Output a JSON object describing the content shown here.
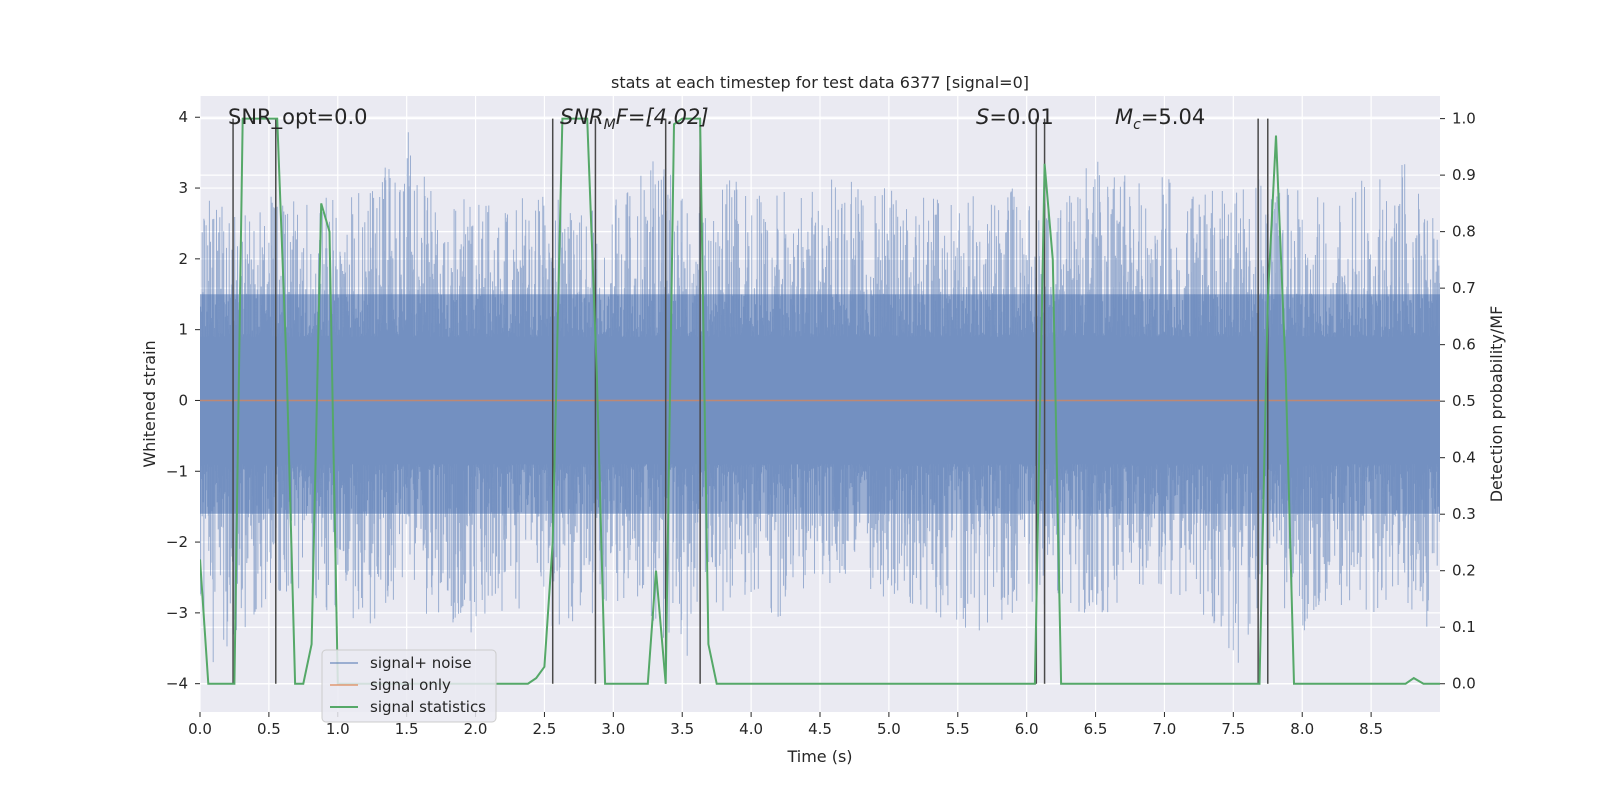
{
  "chart_data": {
    "type": "line",
    "title": "stats at each timestep for test data 6377 [signal=0]",
    "xlabel": "Time (s)",
    "ylabel": "Whitened strain",
    "ylabel_right": "Detection probability/MF",
    "xlim": [
      0.0,
      9.0
    ],
    "ylim": [
      -4.4,
      4.3
    ],
    "ylim_right": [
      -0.05,
      1.04
    ],
    "x_ticks": [
      "0.0",
      "0.5",
      "1.0",
      "1.5",
      "2.0",
      "2.5",
      "3.0",
      "3.5",
      "4.0",
      "4.5",
      "5.0",
      "5.5",
      "6.0",
      "6.5",
      "7.0",
      "7.5",
      "8.0",
      "8.5"
    ],
    "y_ticks": [
      "−4",
      "−3",
      "−2",
      "−1",
      "0",
      "1",
      "2",
      "3",
      "4"
    ],
    "y_ticks_right": [
      "0.0",
      "0.1",
      "0.2",
      "0.3",
      "0.4",
      "0.5",
      "0.6",
      "0.7",
      "0.8",
      "0.9",
      "1.0"
    ],
    "grid": true,
    "legend": {
      "position": "lower-left",
      "entries": [
        {
          "label": "signal+ noise",
          "color": "#4c72b0"
        },
        {
          "label": "signal only",
          "color": "#dd8452"
        },
        {
          "label": "signal statistics",
          "color": "#55a868"
        }
      ]
    },
    "annotations": {
      "snr_opt": "SNR_opt=0.0",
      "snr_mf_main": "SNR",
      "snr_mf_sub": "M",
      "snr_mf_rest": "F=[4.02]",
      "s_main": "S",
      "s_rest": "=0.01",
      "mc_main": "M",
      "mc_sub": "c",
      "mc_rest": "=5.04"
    },
    "series": [
      {
        "name": "signal+ noise",
        "color": "#4c72b0",
        "description_free": true,
        "envelope": {
          "x": [
            0.0,
            0.25,
            0.5,
            0.75,
            1.0,
            1.25,
            1.5,
            1.75,
            2.0,
            2.25,
            2.5,
            2.75,
            3.0,
            3.25,
            3.5,
            3.75,
            4.0,
            4.25,
            4.5,
            4.75,
            5.0,
            5.25,
            5.5,
            5.75,
            6.0,
            6.25,
            6.5,
            6.75,
            7.0,
            7.25,
            7.5,
            7.75,
            8.0,
            8.25,
            8.5,
            8.75,
            9.0
          ],
          "upper": [
            2.9,
            2.7,
            3.1,
            2.9,
            2.9,
            3.0,
            3.9,
            2.8,
            3.0,
            2.9,
            3.1,
            2.6,
            3.0,
            3.7,
            3.0,
            3.2,
            3.1,
            3.0,
            3.4,
            3.1,
            3.0,
            2.9,
            2.8,
            3.0,
            3.0,
            2.7,
            3.5,
            3.3,
            3.2,
            2.9,
            3.1,
            3.3,
            3.0,
            3.1,
            3.2,
            3.4,
            3.1
          ],
          "lower": [
            -3.8,
            -3.6,
            -2.8,
            -2.9,
            -3.0,
            -3.2,
            -2.7,
            -3.3,
            -3.3,
            -3.1,
            -3.4,
            -3.2,
            -2.9,
            -3.0,
            -3.8,
            -3.0,
            -2.9,
            -3.1,
            -2.6,
            -2.6,
            -2.9,
            -3.0,
            -3.2,
            -3.3,
            -2.9,
            -2.9,
            -3.1,
            -2.8,
            -2.9,
            -2.9,
            -4.0,
            -2.8,
            -3.3,
            -2.9,
            -3.0,
            -3.0,
            -3.4
          ]
        }
      },
      {
        "name": "signal only",
        "color": "#dd8452",
        "x": [
          0.0,
          9.0
        ],
        "y": [
          0.0,
          0.0
        ]
      },
      {
        "name": "signal statistics",
        "color": "#55a868",
        "axis": "right",
        "x": [
          0.0,
          0.06,
          0.13,
          0.19,
          0.25,
          0.31,
          0.38,
          0.44,
          0.5,
          0.56,
          0.63,
          0.69,
          0.75,
          0.81,
          0.88,
          0.94,
          1.0,
          1.06,
          1.13,
          1.19,
          1.25,
          1.31,
          1.38,
          1.44,
          1.5,
          1.56,
          1.63,
          1.69,
          1.75,
          1.81,
          1.88,
          1.94,
          2.0,
          2.06,
          2.13,
          2.19,
          2.25,
          2.31,
          2.38,
          2.44,
          2.5,
          2.56,
          2.63,
          2.69,
          2.75,
          2.81,
          2.88,
          2.94,
          3.0,
          3.06,
          3.13,
          3.19,
          3.25,
          3.31,
          3.38,
          3.44,
          3.5,
          3.56,
          3.63,
          3.69,
          3.75,
          4.0,
          4.5,
          5.0,
          5.5,
          6.0,
          6.06,
          6.13,
          6.19,
          6.25,
          6.31,
          6.38,
          7.0,
          7.5,
          7.63,
          7.69,
          7.75,
          7.81,
          7.88,
          7.94,
          8.0,
          8.5,
          8.69,
          8.75,
          8.81,
          8.88,
          9.0
        ],
        "y": [
          0.22,
          0.0,
          0.0,
          0.0,
          0.0,
          1.0,
          1.0,
          1.0,
          1.0,
          1.0,
          0.55,
          0.0,
          0.0,
          0.07,
          0.85,
          0.8,
          0.0,
          0.0,
          0.0,
          0.0,
          0.0,
          0.0,
          0.0,
          0.0,
          0.0,
          0.0,
          0.0,
          0.0,
          0.0,
          0.0,
          0.0,
          0.0,
          0.0,
          0.0,
          0.0,
          0.0,
          0.0,
          0.0,
          0.0,
          0.01,
          0.03,
          0.25,
          1.0,
          1.0,
          1.0,
          1.0,
          0.55,
          0.0,
          0.0,
          0.0,
          0.0,
          0.0,
          0.0,
          0.2,
          0.0,
          0.99,
          1.0,
          1.0,
          1.0,
          0.07,
          0.0,
          0.0,
          0.0,
          0.0,
          0.0,
          0.0,
          0.0,
          0.92,
          0.75,
          0.0,
          0.0,
          0.0,
          0.0,
          0.0,
          0.0,
          0.0,
          0.68,
          0.97,
          0.55,
          0.0,
          0.0,
          0.0,
          0.0,
          0.0,
          0.01,
          0.0,
          0.0
        ]
      }
    ],
    "vertical_lines_x": [
      0.24,
      0.55,
      2.56,
      2.87,
      3.38,
      3.63,
      6.07,
      6.13,
      7.68,
      7.75
    ]
  }
}
